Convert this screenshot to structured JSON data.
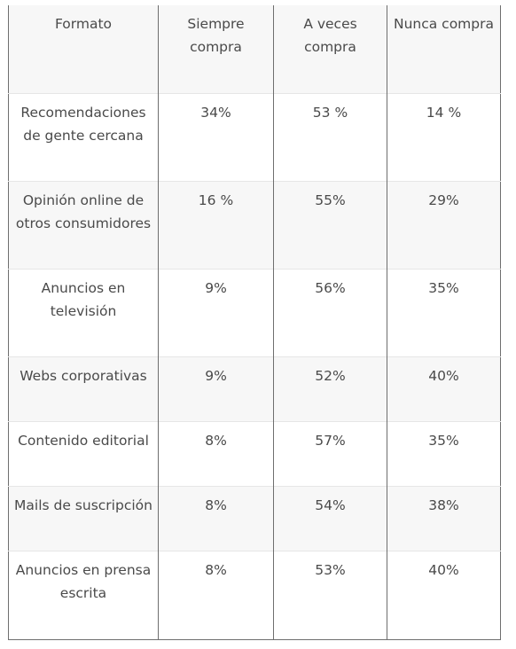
{
  "table": {
    "headers": [
      "Formato",
      "Siempre compra",
      "A veces compra",
      "Nunca compra"
    ],
    "rows": [
      [
        "Recomendaciones de gente cercana",
        "34%",
        "53 %",
        "14 %"
      ],
      [
        "Opinión online de otros consumidores",
        "16 %",
        "55%",
        "29%"
      ],
      [
        "Anuncios en televisión",
        "9%",
        "56%",
        "35%"
      ],
      [
        "Webs corporativas",
        "9%",
        "52%",
        "40%"
      ],
      [
        "Contenido editorial",
        "8%",
        "57%",
        "35%"
      ],
      [
        "Mails de suscripción",
        "8%",
        "54%",
        "38%"
      ],
      [
        "Anuncios en prensa escrita",
        "8%",
        "53%",
        "40%"
      ]
    ]
  }
}
